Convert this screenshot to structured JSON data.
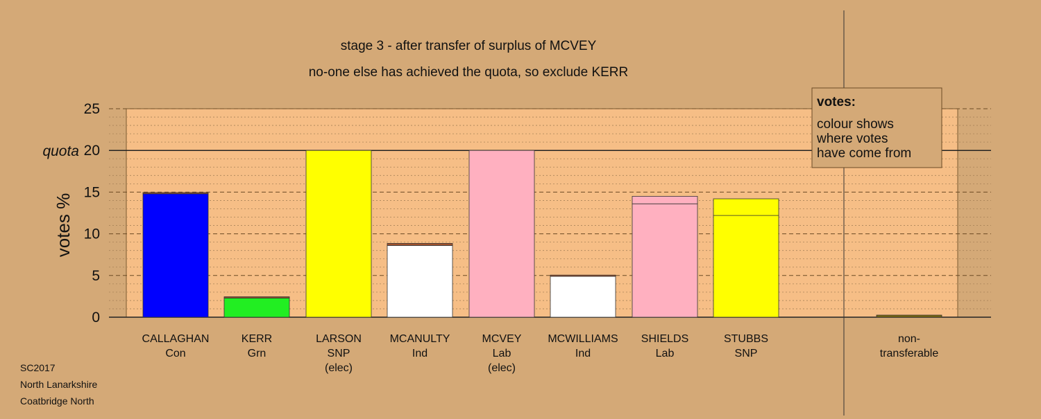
{
  "title": "stage 3 - after transfer of surplus of MCVEY",
  "subtitle": "no-one else has achieved the quota, so exclude KERR",
  "ylabel": "votes %",
  "quota_label": "quota",
  "legend": {
    "heading": "votes:",
    "lines": [
      "colour shows",
      "where votes",
      "have come from"
    ]
  },
  "footer": [
    "SC2017",
    "North Lanarkshire",
    "Coatbridge North"
  ],
  "colors": {
    "background": "#d4a977",
    "plot_area": "#f6be86",
    "Con": "#0000ff",
    "Grn": "#22ee22",
    "SNP": "#ffff00",
    "Ind": "#ffffff",
    "Lab": "#ffb0c0",
    "nontransferable": "#7a6a10",
    "transfer": "#a0522d"
  },
  "chart_data": {
    "type": "bar",
    "stacked": true,
    "ylim": [
      0,
      25
    ],
    "yticks": [
      0,
      5,
      10,
      15,
      20,
      25
    ],
    "quota": 20,
    "grid": true,
    "categories": [
      {
        "name": "CALLAGHAN",
        "party": "Con",
        "note": ""
      },
      {
        "name": "KERR",
        "party": "Grn",
        "note": ""
      },
      {
        "name": "LARSON",
        "party": "SNP",
        "note": "(elec)"
      },
      {
        "name": "MCANULTY",
        "party": "Ind",
        "note": ""
      },
      {
        "name": "MCVEY",
        "party": "Lab",
        "note": "(elec)"
      },
      {
        "name": "MCWILLIAMS",
        "party": "Ind",
        "note": ""
      },
      {
        "name": "SHIELDS",
        "party": "Lab",
        "note": ""
      },
      {
        "name": "STUBBS",
        "party": "SNP",
        "note": ""
      },
      {
        "name": "non-",
        "party": "transferable",
        "note": ""
      }
    ],
    "segments": [
      [
        {
          "value": 14.8,
          "color": "Con"
        },
        {
          "value": 0.15,
          "color": "transfer"
        }
      ],
      [
        {
          "value": 2.3,
          "color": "Grn"
        },
        {
          "value": 0.15,
          "color": "transfer"
        }
      ],
      [
        {
          "value": 20.0,
          "color": "SNP"
        }
      ],
      [
        {
          "value": 8.6,
          "color": "Ind"
        },
        {
          "value": 0.25,
          "color": "transfer"
        }
      ],
      [
        {
          "value": 20.0,
          "color": "Lab"
        }
      ],
      [
        {
          "value": 4.9,
          "color": "Ind"
        },
        {
          "value": 0.15,
          "color": "transfer"
        }
      ],
      [
        {
          "value": 13.6,
          "color": "Lab"
        },
        {
          "value": 0.9,
          "color": "Lab"
        }
      ],
      [
        {
          "value": 12.2,
          "color": "SNP"
        },
        {
          "value": 2.0,
          "color": "SNP"
        }
      ],
      [
        {
          "value": 0.25,
          "color": "nontransferable"
        }
      ]
    ]
  }
}
